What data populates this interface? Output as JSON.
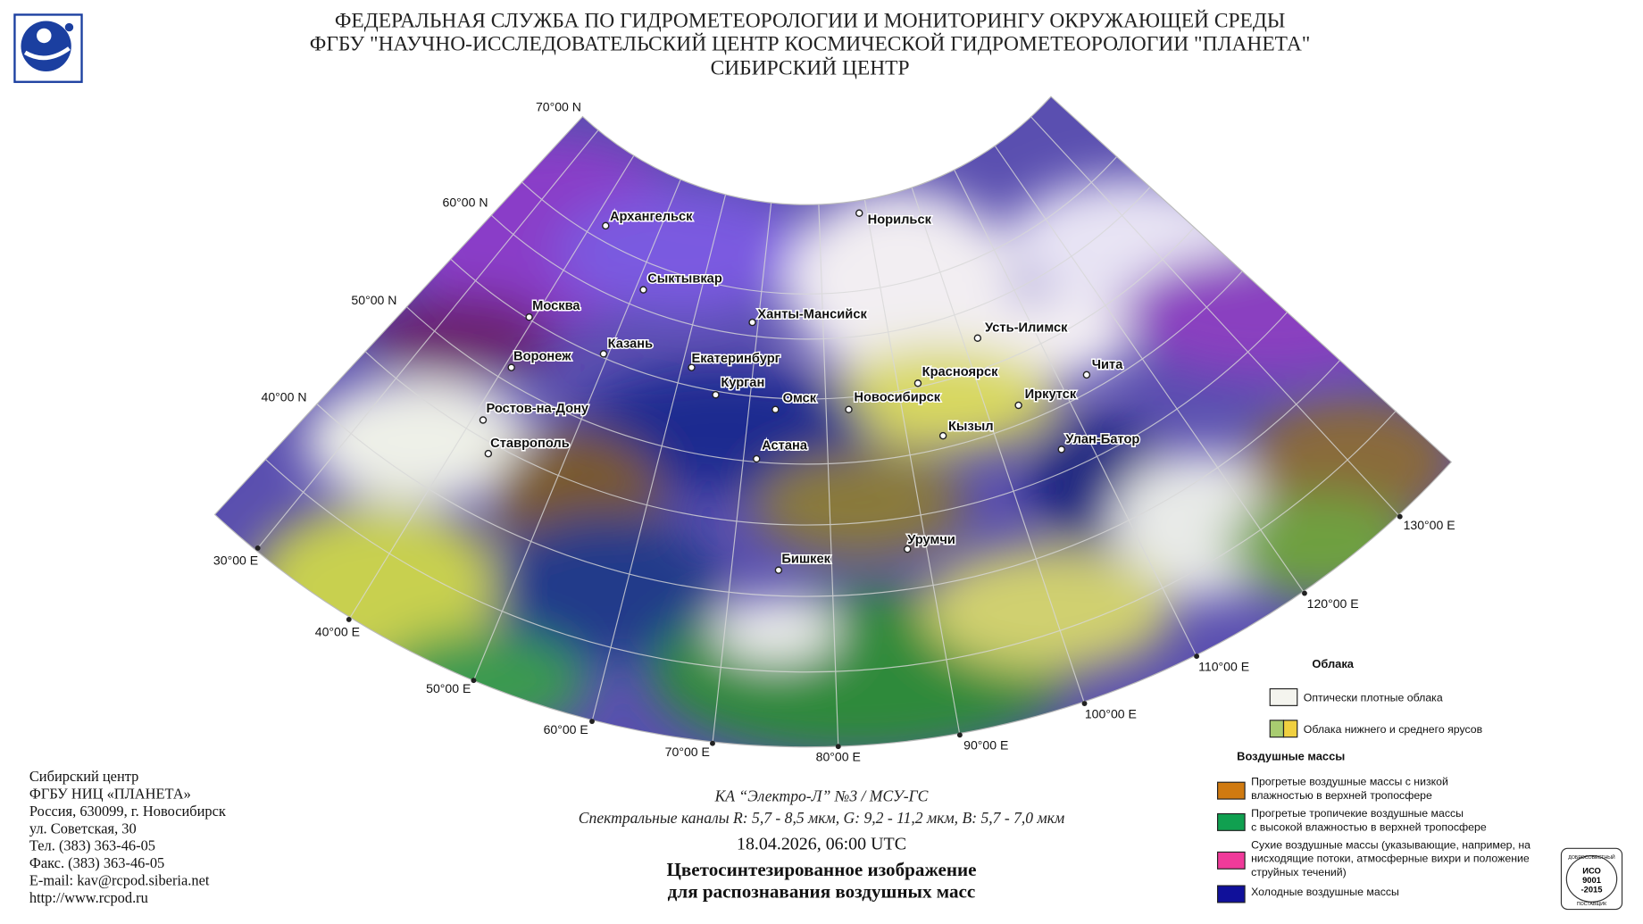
{
  "header": {
    "lines": [
      "ФЕДЕРАЛЬНАЯ СЛУЖБА ПО ГИДРОМЕТЕОРОЛОГИИ И МОНИТОРИНГУ ОКРУЖАЮЩЕЙ СРЕДЫ",
      "ФГБУ \"НАУЧНО-ИССЛЕДОВАТЕЛЬСКИЙ ЦЕНТР КОСМИЧЕСКОЙ ГИДРОМЕТЕОРОЛОГИИ \"ПЛАНЕТА\"",
      "СИБИРСКИЙ ЦЕНТР"
    ]
  },
  "map": {
    "lat_labels": [
      "70°00 N",
      "60°00 N",
      "50°00 N",
      "40°00 N"
    ],
    "lon_labels": [
      "30°00 E",
      "40°00 E",
      "50°00 E",
      "60°00 E",
      "70°00 E",
      "80°00 E",
      "90°00 E",
      "100°00 E",
      "110°00 E",
      "120°00 E",
      "130°00 E"
    ],
    "cities": [
      "Архангельск",
      "Норильск",
      "Сыктывкар",
      "Москва",
      "Ханты-Мансийск",
      "Усть-Илимск",
      "Казань",
      "Воронеж",
      "Екатеринбург",
      "Чита",
      "Красноярск",
      "Курган",
      "Омск",
      "Новосибирск",
      "Иркутск",
      "Ростов-на-Дону",
      "Кызыл",
      "Улан-Батор",
      "Ставрополь",
      "Астана",
      "Урумчи",
      "Бишкек"
    ]
  },
  "legend": {
    "clouds_title": "Облака",
    "clouds": [
      {
        "lines": [
          "Оптически плотные облака"
        ]
      },
      {
        "lines": [
          "Облака нижнего и среднего ярусов"
        ]
      }
    ],
    "air_title": "Воздушные массы",
    "air": [
      {
        "lines": [
          "Прогретые воздушные массы с низкой",
          "влажностью в верхней тропосфере"
        ]
      },
      {
        "lines": [
          "Прогретые тропичекие воздушные массы",
          "с высокой влажностью в верхней тропосфере"
        ]
      },
      {
        "lines": [
          "Сухие воздушные массы (указывающие, например, на",
          "нисходящие потоки, атмосферные вихри и положение",
          "струйных течений)"
        ]
      },
      {
        "lines": [
          "Холодные воздушные массы"
        ]
      }
    ]
  },
  "caption": {
    "satellite": "КА “Электро-Л” №3 / МСУ-ГС",
    "channels": "Спектральные каналы R: 5,7 - 8,5 мкм, G: 9,2 - 11,2 мкм, B: 5,7 - 7,0 мкм",
    "datetime": "18.04.2026, 06:00 UTC",
    "title_lines": [
      "Цветосинтезированное изображение",
      "для распознавания воздушных масс"
    ]
  },
  "contact": {
    "lines": [
      "Сибирский центр",
      "ФГБУ НИЦ «ПЛАНЕТА»",
      "Россия, 630099, г. Новосибирск",
      "ул. Советская, 30",
      "Тел. (383) 363-46-05",
      "Факс. (383) 363-46-05",
      "E-mail: kav@rcpod.siberia.net",
      "http://www.rcpod.ru"
    ]
  },
  "badge": {
    "top": "ДОБРОСОВЕСТНЫЙ",
    "lines": [
      "ИСО",
      "9001",
      "-2015"
    ],
    "bottom": "ПОСТАВЩИК"
  }
}
